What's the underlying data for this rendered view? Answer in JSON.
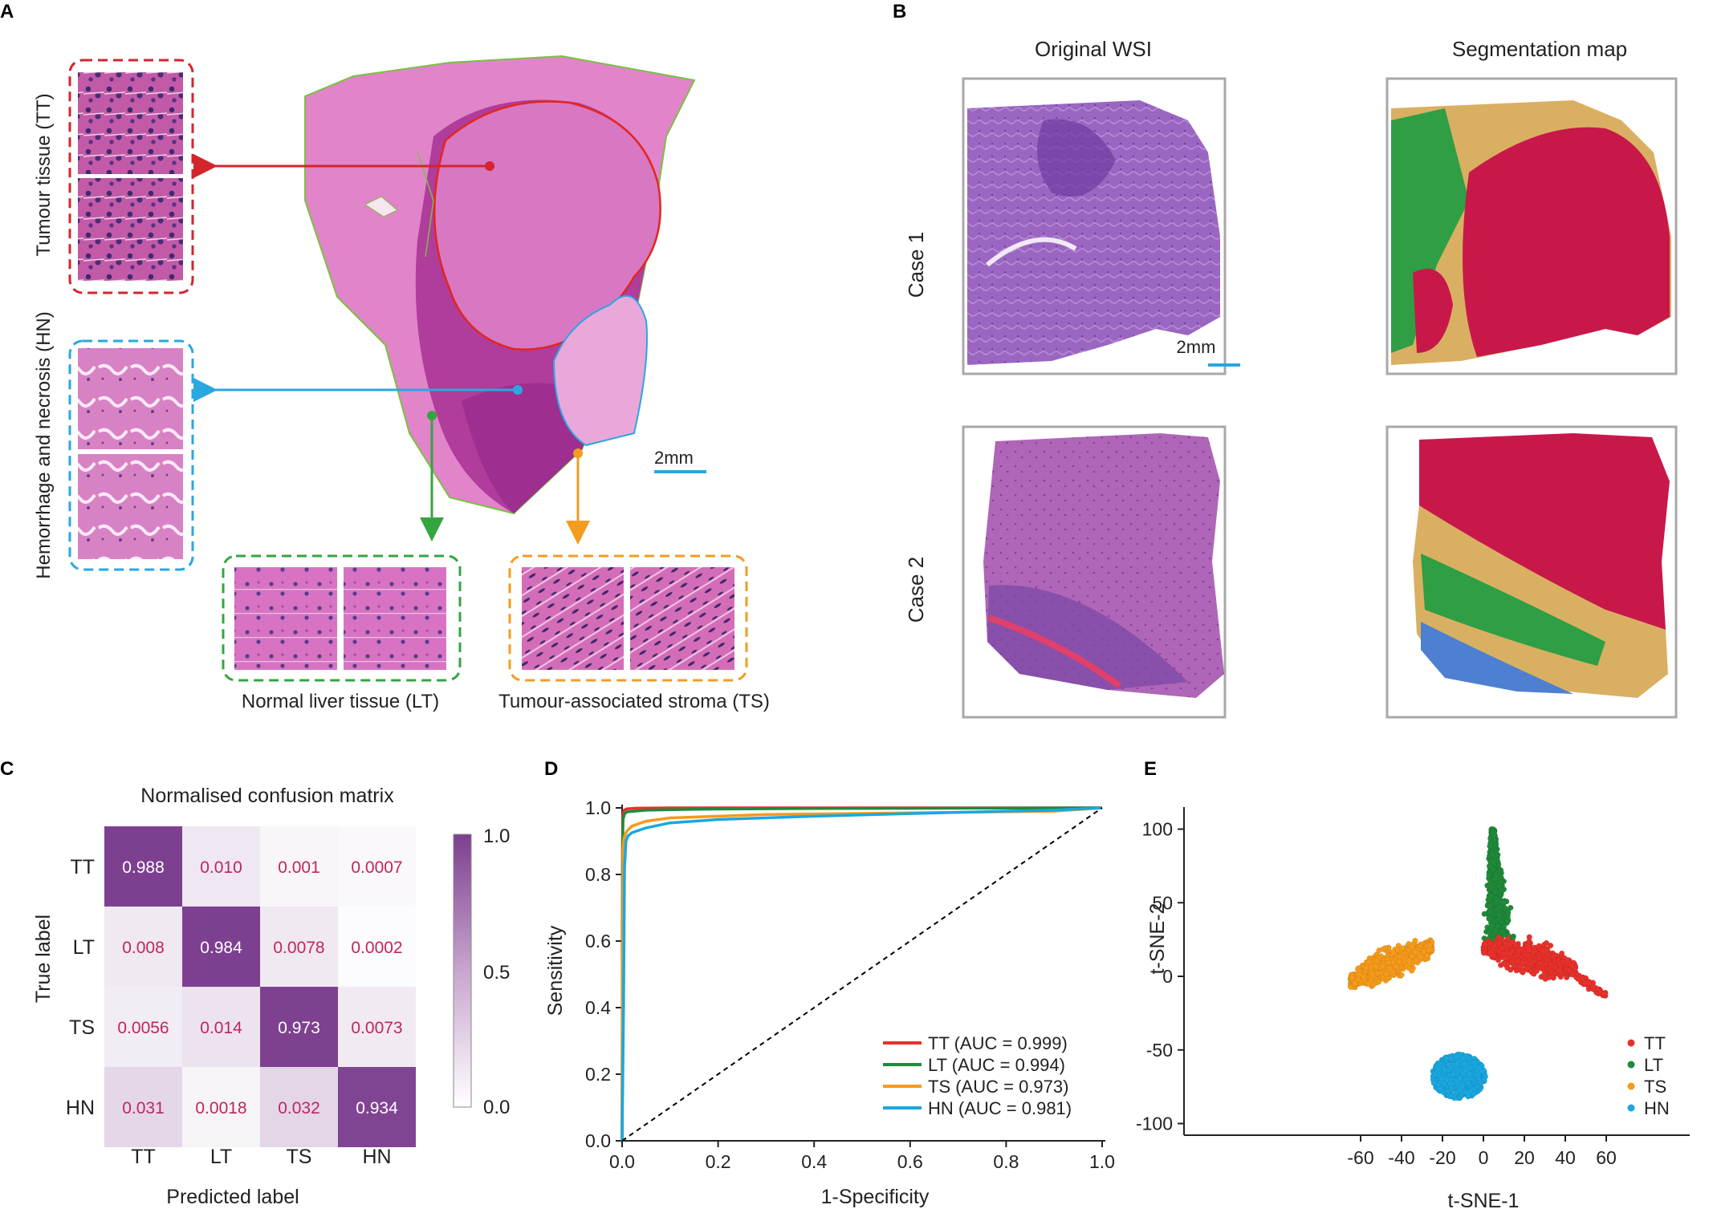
{
  "panels": {
    "A": {
      "letter": "A",
      "scalebar": "2mm",
      "labels": {
        "tt": "Tumour tissue (TT)",
        "hn": "Hemorrhage and necrosis (HN)",
        "lt": "Normal liver tissue (LT)",
        "ts": "Tumour-associated stroma (TS)"
      },
      "colors": {
        "tt": "#d4252c",
        "hn": "#29a7e1",
        "lt": "#33a540",
        "ts": "#f39c1f"
      }
    },
    "B": {
      "letter": "B",
      "col_original": "Original WSI",
      "col_segmentation": "Segmentation map",
      "case1": "Case 1",
      "case2": "Case 2",
      "scalebar": "2mm",
      "seg_colors": {
        "tt": "#c8184a",
        "lt": "#2f9e44",
        "ts": "#d9b062",
        "hn": "#4f7fd0"
      }
    },
    "C": {
      "letter": "C",
      "title": "Normalised confusion matrix",
      "xlabel": "Predicted label",
      "ylabel": "True label",
      "colorbar_ticks": [
        "1.0",
        "0.5",
        "0.0"
      ]
    },
    "D": {
      "letter": "D",
      "xlabel": "1-Specificity",
      "ylabel": "Sensitivity"
    },
    "E": {
      "letter": "E",
      "xlabel": "t-SNE-1",
      "ylabel": "t-SNE-2"
    }
  },
  "chart_data": [
    {
      "type": "heatmap",
      "title": "Normalised confusion matrix",
      "xlabel": "Predicted label",
      "ylabel": "True label",
      "x_categories": [
        "TT",
        "LT",
        "TS",
        "HN"
      ],
      "y_categories": [
        "TT",
        "LT",
        "TS",
        "HN"
      ],
      "cells": [
        [
          "0.988",
          "0.010",
          "0.001",
          "0.0007"
        ],
        [
          "0.008",
          "0.984",
          "0.0078",
          "0.0002"
        ],
        [
          "0.0056",
          "0.014",
          "0.973",
          "0.0073"
        ],
        [
          "0.031",
          "0.0018",
          "0.032",
          "0.934"
        ]
      ],
      "color_range": [
        0,
        1
      ],
      "colors": {
        "low": "#ffffff",
        "high": "#7c3f8f",
        "text_low": "#c0255f",
        "text_high": "#ffffff"
      }
    },
    {
      "type": "line",
      "xlabel": "1-Specificity",
      "ylabel": "Sensitivity",
      "xlim": [
        0,
        1
      ],
      "ylim": [
        0,
        1
      ],
      "xticks": [
        "0.0",
        "0.2",
        "0.4",
        "0.6",
        "0.8",
        "1.0"
      ],
      "yticks": [
        "0.0",
        "0.2",
        "0.4",
        "0.6",
        "0.8",
        "1.0"
      ],
      "legend_position": "bottom-right",
      "series": [
        {
          "name": "TT",
          "legend": "TT  (AUC = 0.999)",
          "color": "#e8312b",
          "x": [
            0,
            0.0005,
            0.001,
            0.002,
            0.004,
            0.01,
            0.03,
            0.1,
            0.3,
            0.6,
            1.0
          ],
          "y": [
            0,
            0.6,
            0.95,
            0.985,
            0.993,
            0.997,
            0.999,
            1.0,
            1.0,
            1.0,
            1.0
          ]
        },
        {
          "name": "LT",
          "legend": "LT  (AUC = 0.994)",
          "color": "#1f8a3a",
          "x": [
            0,
            0.0005,
            0.001,
            0.002,
            0.005,
            0.01,
            0.05,
            0.15,
            0.4,
            0.7,
            1.0
          ],
          "y": [
            0,
            0.5,
            0.9,
            0.965,
            0.982,
            0.988,
            0.993,
            0.996,
            0.998,
            0.999,
            1.0
          ]
        },
        {
          "name": "TS",
          "legend": "TS  (AUC = 0.973)",
          "color": "#f59a1b",
          "x": [
            0,
            0.001,
            0.002,
            0.003,
            0.005,
            0.01,
            0.02,
            0.05,
            0.1,
            0.3,
            0.6,
            0.9,
            1.0
          ],
          "y": [
            0,
            0.5,
            0.88,
            0.9,
            0.915,
            0.93,
            0.945,
            0.96,
            0.97,
            0.98,
            0.985,
            0.99,
            1.0
          ]
        },
        {
          "name": "HN",
          "legend": "HN (AUC = 0.981)",
          "color": "#1aa7e0",
          "x": [
            0,
            0.003,
            0.005,
            0.008,
            0.012,
            0.02,
            0.05,
            0.1,
            0.2,
            0.4,
            0.6,
            0.8,
            0.9,
            1.0
          ],
          "y": [
            0,
            0.4,
            0.82,
            0.9,
            0.915,
            0.925,
            0.94,
            0.955,
            0.965,
            0.975,
            0.983,
            0.99,
            0.993,
            1.0
          ]
        },
        {
          "name": "",
          "legend": "",
          "color": "#000000",
          "dashed": true,
          "x": [
            0,
            1
          ],
          "y": [
            0,
            1
          ]
        }
      ]
    },
    {
      "type": "scatter",
      "xlabel": "t-SNE-1",
      "ylabel": "t-SNE-2",
      "xlim": [
        -80,
        65
      ],
      "ylim": [
        -105,
        115
      ],
      "xticks": [
        -60,
        -40,
        -20,
        0,
        20,
        40,
        60
      ],
      "yticks": [
        100,
        50,
        0,
        -50,
        -100
      ],
      "legend_position": "bottom-right",
      "series": [
        {
          "name": "TT",
          "color": "#e8312b",
          "clusters": [
            {
              "shape": "band",
              "x_range": [
                0,
                45
              ],
              "y_start": 20,
              "y_end": 5,
              "spread": 10,
              "n": 700
            },
            {
              "shape": "band",
              "x_range": [
                40,
                60
              ],
              "y_start": 5,
              "y_end": -13,
              "spread": 3,
              "n": 90
            }
          ]
        },
        {
          "name": "LT",
          "color": "#1f8a3a",
          "clusters": [
            {
              "shape": "fan",
              "x_range": [
                -2,
                17
              ],
              "y_range": [
                25,
                100
              ],
              "n": 550
            }
          ]
        },
        {
          "name": "TS",
          "color": "#f59a1b",
          "clusters": [
            {
              "shape": "band",
              "x_range": [
                -65,
                -25
              ],
              "y_start": -3,
              "y_end": 20,
              "spread": 10,
              "n": 650
            }
          ]
        },
        {
          "name": "HN",
          "color": "#1aa7e0",
          "clusters": [
            {
              "shape": "ellipse",
              "center": [
                -12,
                -68
              ],
              "radius": [
                13,
                15
              ],
              "n": 600
            }
          ]
        }
      ]
    }
  ]
}
